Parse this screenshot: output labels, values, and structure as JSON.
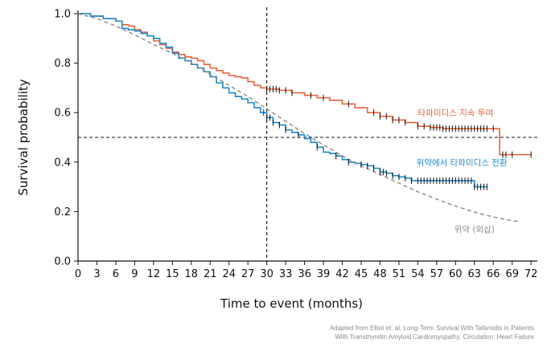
{
  "chart_data": {
    "type": "line",
    "title": "",
    "xlabel": "Time to event (months)",
    "ylabel": "Survival probability",
    "xlim": [
      0,
      73
    ],
    "ylim": [
      0,
      1.0
    ],
    "x_ticks": [
      "0",
      "3",
      "6",
      "9",
      "12",
      "15",
      "18",
      "21",
      "24",
      "27",
      "30",
      "33",
      "36",
      "39",
      "42",
      "45",
      "48",
      "51",
      "54",
      "57",
      "60",
      "63",
      "66",
      "69",
      "72"
    ],
    "y_ticks": [
      "0.0",
      "0.2",
      "0.4",
      "0.6",
      "0.8",
      "1.0"
    ],
    "reference_lines": {
      "x": 30,
      "y": 0.5
    },
    "grid": false,
    "series": [
      {
        "name": "타파미디스 지속 투여",
        "color": "#e8643a",
        "style": "step",
        "points": [
          [
            0,
            1.0
          ],
          [
            2,
            0.99
          ],
          [
            4,
            0.98
          ],
          [
            6,
            0.97
          ],
          [
            7,
            0.955
          ],
          [
            8,
            0.95
          ],
          [
            9,
            0.935
          ],
          [
            10,
            0.925
          ],
          [
            11,
            0.91
          ],
          [
            12,
            0.89
          ],
          [
            13,
            0.875
          ],
          [
            14,
            0.86
          ],
          [
            15,
            0.845
          ],
          [
            16,
            0.835
          ],
          [
            17,
            0.825
          ],
          [
            18,
            0.82
          ],
          [
            19,
            0.81
          ],
          [
            20,
            0.795
          ],
          [
            21,
            0.78
          ],
          [
            22,
            0.77
          ],
          [
            23,
            0.76
          ],
          [
            24,
            0.75
          ],
          [
            25,
            0.745
          ],
          [
            26,
            0.74
          ],
          [
            27,
            0.725
          ],
          [
            28,
            0.71
          ],
          [
            29,
            0.7
          ],
          [
            30,
            0.695
          ],
          [
            32,
            0.69
          ],
          [
            34,
            0.68
          ],
          [
            36,
            0.67
          ],
          [
            38,
            0.66
          ],
          [
            40,
            0.65
          ],
          [
            42,
            0.635
          ],
          [
            44,
            0.62
          ],
          [
            46,
            0.6
          ],
          [
            48,
            0.585
          ],
          [
            50,
            0.57
          ],
          [
            52,
            0.56
          ],
          [
            54,
            0.545
          ],
          [
            56,
            0.54
          ],
          [
            58,
            0.535
          ],
          [
            66,
            0.535
          ],
          [
            67,
            0.43
          ],
          [
            72,
            0.43
          ]
        ],
        "censor_x": [
          30,
          30.5,
          31,
          31.5,
          32,
          33,
          34,
          37,
          39,
          43,
          47,
          48,
          49,
          50,
          51,
          52,
          54,
          55,
          56,
          56.5,
          57,
          57.5,
          58,
          58.5,
          59,
          59.5,
          60,
          60.5,
          61,
          61.5,
          62,
          62.5,
          63,
          63.5,
          64,
          64.5,
          65,
          66,
          67.5,
          68,
          69,
          72
        ]
      },
      {
        "name": "위약에서 타파미디스 전환",
        "color": "#1f88c9",
        "style": "step",
        "points": [
          [
            0,
            1.0
          ],
          [
            2,
            0.99
          ],
          [
            4,
            0.98
          ],
          [
            6,
            0.97
          ],
          [
            7,
            0.94
          ],
          [
            8,
            0.935
          ],
          [
            9,
            0.93
          ],
          [
            10,
            0.92
          ],
          [
            11,
            0.91
          ],
          [
            12,
            0.9
          ],
          [
            13,
            0.88
          ],
          [
            14,
            0.865
          ],
          [
            15,
            0.84
          ],
          [
            16,
            0.82
          ],
          [
            17,
            0.81
          ],
          [
            18,
            0.795
          ],
          [
            19,
            0.78
          ],
          [
            20,
            0.765
          ],
          [
            21,
            0.745
          ],
          [
            22,
            0.72
          ],
          [
            23,
            0.7
          ],
          [
            24,
            0.68
          ],
          [
            25,
            0.665
          ],
          [
            26,
            0.655
          ],
          [
            27,
            0.64
          ],
          [
            28,
            0.62
          ],
          [
            29,
            0.6
          ],
          [
            30,
            0.58
          ],
          [
            31,
            0.56
          ],
          [
            32,
            0.55
          ],
          [
            33,
            0.53
          ],
          [
            34,
            0.52
          ],
          [
            35,
            0.51
          ],
          [
            36,
            0.495
          ],
          [
            37,
            0.48
          ],
          [
            38,
            0.46
          ],
          [
            39,
            0.44
          ],
          [
            40,
            0.435
          ],
          [
            41,
            0.425
          ],
          [
            42,
            0.41
          ],
          [
            43,
            0.4
          ],
          [
            44,
            0.395
          ],
          [
            45,
            0.39
          ],
          [
            46,
            0.385
          ],
          [
            47,
            0.375
          ],
          [
            48,
            0.36
          ],
          [
            49,
            0.355
          ],
          [
            50,
            0.345
          ],
          [
            51,
            0.34
          ],
          [
            52,
            0.335
          ],
          [
            53,
            0.325
          ],
          [
            54,
            0.325
          ],
          [
            62,
            0.325
          ],
          [
            63,
            0.3
          ],
          [
            65,
            0.3
          ]
        ],
        "censor_x": [
          29.5,
          30,
          30.5,
          31,
          32,
          33,
          35,
          38,
          41,
          43,
          45,
          46,
          47,
          48,
          48.5,
          49,
          50,
          51,
          52,
          53,
          54,
          54.5,
          55,
          55.5,
          56,
          56.5,
          57,
          57.5,
          58,
          58.5,
          59,
          59.5,
          60,
          60.5,
          61,
          61.5,
          62,
          62.5,
          63,
          63.5,
          64,
          64.5,
          65
        ]
      },
      {
        "name": "위약 (외삽)",
        "color": "#8a8a8a",
        "style": "dashed-curve",
        "points": [
          [
            0,
            1.0
          ],
          [
            3,
            0.98
          ],
          [
            6,
            0.95
          ],
          [
            9,
            0.915
          ],
          [
            12,
            0.875
          ],
          [
            15,
            0.84
          ],
          [
            18,
            0.8
          ],
          [
            21,
            0.755
          ],
          [
            24,
            0.71
          ],
          [
            27,
            0.665
          ],
          [
            30,
            0.615
          ],
          [
            33,
            0.565
          ],
          [
            36,
            0.515
          ],
          [
            39,
            0.47
          ],
          [
            42,
            0.425
          ],
          [
            45,
            0.385
          ],
          [
            48,
            0.35
          ],
          [
            51,
            0.315
          ],
          [
            54,
            0.28
          ],
          [
            57,
            0.25
          ],
          [
            60,
            0.222
          ],
          [
            63,
            0.198
          ],
          [
            66,
            0.178
          ],
          [
            69,
            0.163
          ],
          [
            70,
            0.16
          ]
        ]
      }
    ],
    "series_labels": {
      "continuous": "타파미디스 지속 투여",
      "switch": "위약에서 타파미디스 전환",
      "placebo": "위약 (외삽)"
    }
  },
  "source": {
    "line1": "Adapted from Elliot et. al. Long-Term Survival With Tafamidis in Patients",
    "line2": "With Transthyretin Amyloid Cardiomyopathy. Circulation: Heart Failure"
  }
}
